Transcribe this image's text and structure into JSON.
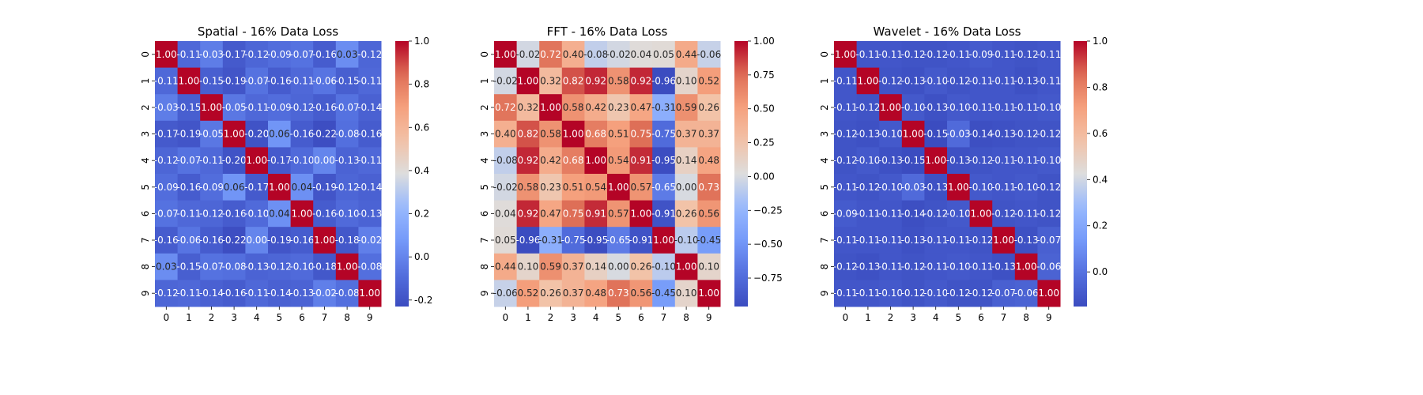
{
  "chart_data": [
    {
      "type": "heatmap",
      "title": "Spatial - 16% Data Loss",
      "row_labels": [
        "0",
        "1",
        "2",
        "3",
        "4",
        "5",
        "6",
        "7",
        "8",
        "9"
      ],
      "col_labels": [
        "0",
        "1",
        "2",
        "3",
        "4",
        "5",
        "6",
        "7",
        "8",
        "9"
      ],
      "colormap": "coolwarm",
      "vmin": -0.23,
      "vmax": 1.0,
      "colorbar_ticks": [
        -0.2,
        0.0,
        0.2,
        0.4,
        0.6,
        0.8,
        1.0
      ],
      "colorbar_tick_labels": [
        "-0.2",
        "0.0",
        "0.2",
        "0.4",
        "0.6",
        "0.8",
        "1.0"
      ],
      "values": [
        [
          1.0,
          -0.11,
          -0.03,
          -0.17,
          -0.12,
          -0.09,
          -0.07,
          -0.16,
          0.03,
          -0.12
        ],
        [
          -0.11,
          1.0,
          -0.15,
          -0.19,
          -0.07,
          -0.16,
          -0.11,
          -0.06,
          -0.15,
          -0.11
        ],
        [
          -0.03,
          -0.15,
          1.0,
          -0.05,
          -0.11,
          -0.09,
          -0.12,
          -0.16,
          -0.07,
          -0.14
        ],
        [
          -0.17,
          -0.19,
          -0.05,
          1.0,
          -0.2,
          0.06,
          -0.16,
          -0.22,
          -0.08,
          -0.16
        ],
        [
          -0.12,
          -0.07,
          -0.11,
          -0.2,
          1.0,
          -0.17,
          -0.1,
          -0.0,
          -0.13,
          -0.11
        ],
        [
          -0.09,
          -0.16,
          -0.09,
          0.06,
          -0.17,
          1.0,
          0.04,
          -0.19,
          -0.12,
          -0.14
        ],
        [
          -0.07,
          -0.11,
          -0.12,
          -0.16,
          -0.1,
          0.04,
          1.0,
          -0.16,
          -0.1,
          -0.13
        ],
        [
          -0.16,
          -0.06,
          -0.16,
          -0.22,
          -0.0,
          -0.19,
          -0.16,
          1.0,
          -0.18,
          -0.02
        ],
        [
          0.03,
          -0.15,
          -0.07,
          -0.08,
          -0.13,
          -0.12,
          -0.1,
          -0.18,
          1.0,
          -0.08
        ],
        [
          -0.12,
          -0.11,
          -0.14,
          -0.16,
          -0.11,
          -0.14,
          -0.13,
          -0.02,
          -0.08,
          1.0
        ]
      ]
    },
    {
      "type": "heatmap",
      "title": "FFT - 16% Data Loss",
      "row_labels": [
        "0",
        "1",
        "2",
        "3",
        "4",
        "5",
        "6",
        "7",
        "8",
        "9"
      ],
      "col_labels": [
        "0",
        "1",
        "2",
        "3",
        "4",
        "5",
        "6",
        "7",
        "8",
        "9"
      ],
      "colormap": "coolwarm",
      "vmin": -0.96,
      "vmax": 1.0,
      "colorbar_ticks": [
        -0.75,
        -0.5,
        -0.25,
        0.0,
        0.25,
        0.5,
        0.75,
        1.0
      ],
      "colorbar_tick_labels": [
        "−0.75",
        "−0.50",
        "−0.25",
        "0.00",
        "0.25",
        "0.50",
        "0.75",
        "1.00"
      ],
      "values": [
        [
          1.0,
          -0.02,
          0.72,
          0.4,
          -0.08,
          -0.02,
          0.04,
          0.05,
          0.44,
          -0.06
        ],
        [
          -0.02,
          1.0,
          0.32,
          0.82,
          0.92,
          0.58,
          0.92,
          -0.96,
          0.1,
          0.52
        ],
        [
          0.72,
          0.32,
          1.0,
          0.58,
          0.42,
          0.23,
          0.47,
          -0.31,
          0.59,
          0.26
        ],
        [
          0.4,
          0.82,
          0.58,
          1.0,
          0.68,
          0.51,
          0.75,
          -0.75,
          0.37,
          0.37
        ],
        [
          -0.08,
          0.92,
          0.42,
          0.68,
          1.0,
          0.54,
          0.91,
          -0.95,
          0.14,
          0.48
        ],
        [
          -0.02,
          0.58,
          0.23,
          0.51,
          0.54,
          1.0,
          0.57,
          -0.65,
          -0.0,
          0.73
        ],
        [
          0.04,
          0.92,
          0.47,
          0.75,
          0.91,
          0.57,
          1.0,
          -0.91,
          0.26,
          0.56
        ],
        [
          0.05,
          -0.96,
          -0.31,
          -0.75,
          -0.95,
          -0.65,
          -0.91,
          1.0,
          -0.1,
          -0.45
        ],
        [
          0.44,
          0.1,
          0.59,
          0.37,
          0.14,
          -0.0,
          0.26,
          -0.1,
          1.0,
          0.1
        ],
        [
          -0.06,
          0.52,
          0.26,
          0.37,
          0.48,
          0.73,
          0.56,
          -0.45,
          0.1,
          1.0
        ]
      ]
    },
    {
      "type": "heatmap",
      "title": "Wavelet - 16% Data Loss",
      "row_labels": [
        "0",
        "1",
        "2",
        "3",
        "4",
        "5",
        "6",
        "7",
        "8",
        "9"
      ],
      "col_labels": [
        "0",
        "1",
        "2",
        "3",
        "4",
        "5",
        "6",
        "7",
        "8",
        "9"
      ],
      "colormap": "coolwarm",
      "vmin": -0.15,
      "vmax": 1.0,
      "colorbar_ticks": [
        0.0,
        0.2,
        0.4,
        0.6,
        0.8,
        1.0
      ],
      "colorbar_tick_labels": [
        "0.0",
        "0.2",
        "0.4",
        "0.6",
        "0.8",
        "1.0"
      ],
      "values": [
        [
          1.0,
          -0.11,
          -0.11,
          -0.12,
          -0.12,
          -0.11,
          -0.09,
          -0.11,
          -0.12,
          -0.11
        ],
        [
          -0.11,
          1.0,
          -0.12,
          -0.13,
          -0.1,
          -0.12,
          -0.11,
          -0.11,
          -0.13,
          -0.11
        ],
        [
          -0.11,
          -0.12,
          1.0,
          -0.1,
          -0.13,
          -0.1,
          -0.11,
          -0.11,
          -0.11,
          -0.1
        ],
        [
          -0.12,
          -0.13,
          -0.1,
          1.0,
          -0.15,
          -0.03,
          -0.14,
          -0.13,
          -0.12,
          -0.12
        ],
        [
          -0.12,
          -0.1,
          -0.13,
          -0.15,
          1.0,
          -0.13,
          -0.12,
          -0.11,
          -0.11,
          -0.1
        ],
        [
          -0.11,
          -0.12,
          -0.1,
          -0.03,
          -0.13,
          1.0,
          -0.1,
          -0.11,
          -0.1,
          -0.12
        ],
        [
          -0.09,
          -0.11,
          -0.11,
          -0.14,
          -0.12,
          -0.1,
          1.0,
          -0.12,
          -0.11,
          -0.12
        ],
        [
          -0.11,
          -0.11,
          -0.11,
          -0.13,
          -0.11,
          -0.11,
          -0.12,
          1.0,
          -0.13,
          -0.07
        ],
        [
          -0.12,
          -0.13,
          -0.11,
          -0.12,
          -0.11,
          -0.1,
          -0.11,
          -0.13,
          1.0,
          -0.06
        ],
        [
          -0.11,
          -0.11,
          -0.1,
          -0.12,
          -0.1,
          -0.12,
          -0.12,
          -0.07,
          -0.06,
          1.0
        ]
      ]
    }
  ]
}
